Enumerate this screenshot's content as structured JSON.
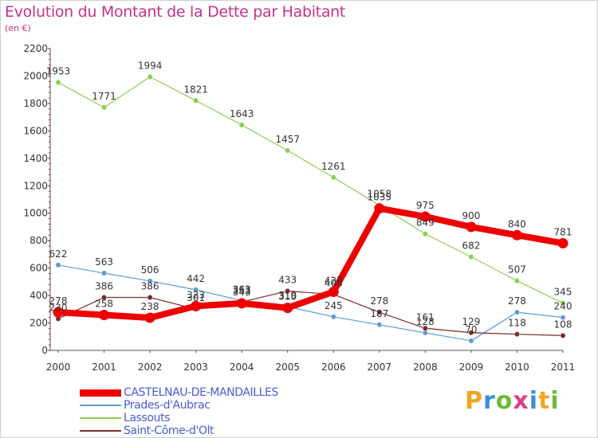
{
  "title": "Evolution du Montant de la Dette par Habitant",
  "subtitle": "(en €)",
  "logo": {
    "text": "Proxiti",
    "colors": [
      "#f2a524",
      "#3a8fd6",
      "#6dbb3a",
      "#e23b8b",
      "#3a8fd6",
      "#f2a524",
      "#6dbb3a"
    ]
  },
  "chart_data": {
    "type": "line",
    "title": "Evolution du Montant de la Dette par Habitant",
    "subtitle": "(en €)",
    "x": [
      "2000",
      "2001",
      "2002",
      "2003",
      "2004",
      "2005",
      "2006",
      "2007",
      "2008",
      "2009",
      "2010",
      "2011"
    ],
    "ylim": [
      0,
      2200
    ],
    "yticks": [
      0,
      200,
      400,
      600,
      800,
      1000,
      1200,
      1400,
      1600,
      1800,
      2000,
      2200
    ],
    "grid": false,
    "legend": "bottom-left",
    "series": [
      {
        "name": "Prades-d'Aubrac",
        "color": "#5b9bd5",
        "width": 1.2,
        "values": [
          622,
          563,
          506,
          442,
          363,
          319,
          245,
          187,
          128,
          70,
          278,
          240
        ],
        "labels": [
          "622",
          "563",
          "506",
          "442",
          "363",
          "319",
          "245",
          "187",
          "128",
          "70",
          "278",
          "240"
        ]
      },
      {
        "name": "Lassouts",
        "color": "#8ccf50",
        "width": 1.2,
        "values": [
          1953,
          1771,
          1994,
          1821,
          1643,
          1457,
          1261,
          1058,
          849,
          682,
          507,
          345
        ],
        "labels": [
          "1953",
          "1771",
          "1994",
          "1821",
          "1643",
          "1457",
          "1261",
          "1058",
          "849",
          "682",
          "507",
          "345"
        ]
      },
      {
        "name": "Saint-Côme-d'Olt",
        "color": "#7a2a2a",
        "width": 1.2,
        "values": [
          230,
          386,
          386,
          301,
          353,
          433,
          408,
          278,
          161,
          129,
          118,
          108
        ],
        "labels": [
          "230",
          "386",
          "386",
          "301",
          "353",
          "433",
          "408",
          "278",
          "161",
          "129",
          "118",
          "108"
        ]
      },
      {
        "name": "CASTELNAU-DE-MANDAILLES",
        "color": "#ee0000",
        "width": 8,
        "values": [
          278,
          258,
          238,
          323,
          343,
          310,
          427,
          1035,
          975,
          900,
          840,
          781
        ],
        "labels": [
          "278",
          "258",
          "238",
          "323",
          "343",
          "310",
          "427",
          "1035",
          "975",
          "900",
          "840",
          "781"
        ]
      }
    ],
    "legend_order": [
      "CASTELNAU-DE-MANDAILLES",
      "Prades-d'Aubrac",
      "Lassouts",
      "Saint-Côme-d'Olt"
    ]
  }
}
